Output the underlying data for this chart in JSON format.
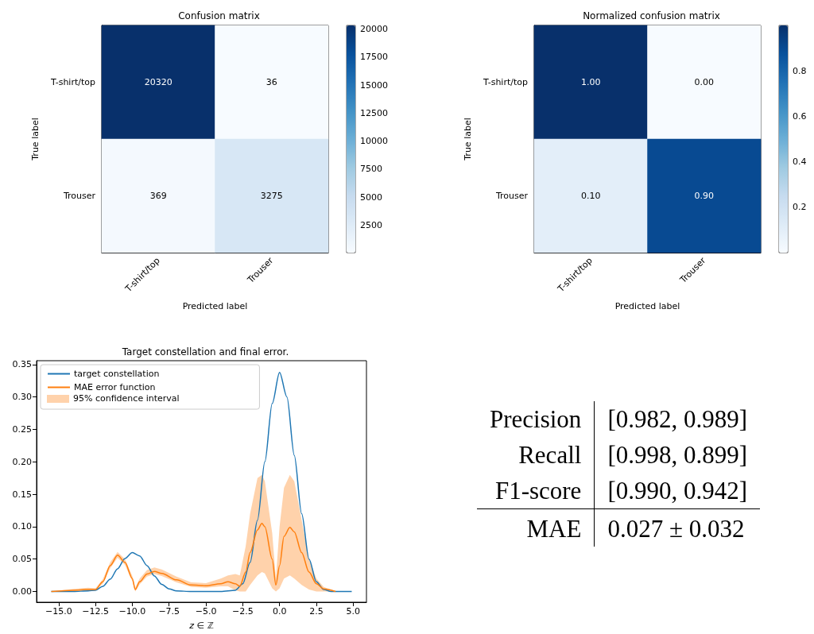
{
  "chart_data": [
    {
      "type": "heatmap",
      "title": "Confusion matrix",
      "xlabel": "Predicted label",
      "ylabel": "True label",
      "categories": [
        "T-shirt/top",
        "Trouser"
      ],
      "y_categories": [
        "T-shirt/top",
        "Trouser"
      ],
      "cells": [
        [
          20320,
          36
        ],
        [
          369,
          3275
        ]
      ],
      "data_labels": true,
      "clim": [
        36,
        20320
      ],
      "cticks": [
        2500,
        5000,
        7500,
        10000,
        12500,
        15000,
        17500,
        20000
      ]
    },
    {
      "type": "heatmap",
      "title": "Normalized confusion matrix",
      "xlabel": "Predicted label",
      "ylabel": "True label",
      "categories": [
        "T-shirt/top",
        "Trouser"
      ],
      "y_categories": [
        "T-shirt/top",
        "Trouser"
      ],
      "cells": [
        [
          1.0,
          0.0
        ],
        [
          0.1,
          0.9
        ]
      ],
      "cell_labels": [
        [
          "1.00",
          "0.00"
        ],
        [
          "0.10",
          "0.90"
        ]
      ],
      "clim": [
        0,
        1
      ],
      "cticks": [
        0.2,
        0.4,
        0.6,
        0.8
      ]
    },
    {
      "type": "line",
      "title": "Target constellation and final error.",
      "xlabel": "z ∈ ℤ",
      "legend": "top left",
      "marker": "none",
      "annotations": [
        "95% confidence interval"
      ],
      "xlim": [
        -16.5,
        5.9
      ],
      "ylim": [
        -0.0165,
        0.356
      ],
      "xticks": [
        {
          "value": -15,
          "label": "−15.0"
        },
        {
          "value": -12.5,
          "label": "−12.5"
        },
        {
          "value": -10,
          "label": "−10.0"
        },
        {
          "value": -7.5,
          "label": "−7.5"
        },
        {
          "value": -5,
          "label": "−5.0"
        },
        {
          "value": -2.5,
          "label": "−2.5"
        },
        {
          "value": 0,
          "label": "0.0"
        },
        {
          "value": 2.5,
          "label": "2.5"
        },
        {
          "value": 5,
          "label": "5.0"
        }
      ],
      "yticks": [
        {
          "value": 0,
          "label": "0.00"
        },
        {
          "value": 0.05,
          "label": "0.05"
        },
        {
          "value": 0.1,
          "label": "0.10"
        },
        {
          "value": 0.15,
          "label": "0.15"
        },
        {
          "value": 0.2,
          "label": "0.20"
        },
        {
          "value": 0.25,
          "label": "0.25"
        },
        {
          "value": 0.3,
          "label": "0.30"
        },
        {
          "value": 0.35,
          "label": "0.35"
        }
      ],
      "series": [
        {
          "name": "target constellation",
          "color": "#1f77b4",
          "x": [
            -15.5,
            -14,
            -13,
            -12.5,
            -12,
            -11.5,
            -11,
            -10.5,
            -10,
            -9.5,
            -9,
            -8.5,
            -8,
            -7.5,
            -7,
            -6,
            -4,
            -3,
            -2.5,
            -2,
            -1.5,
            -1,
            -0.5,
            0,
            0.5,
            1,
            1.5,
            2,
            2.5,
            3,
            3.5,
            4.9
          ],
          "values": [
            0,
            0,
            0.001,
            0.002,
            0.008,
            0.019,
            0.035,
            0.051,
            0.06,
            0.055,
            0.04,
            0.024,
            0.011,
            0.004,
            0.001,
            0,
            0,
            0.002,
            0.012,
            0.045,
            0.11,
            0.2,
            0.29,
            0.338,
            0.3,
            0.21,
            0.12,
            0.05,
            0.015,
            0.003,
            0,
            0
          ]
        },
        {
          "name": "MAE error function",
          "color": "#ff7f0e",
          "x": [
            -15.5,
            -14,
            -13,
            -12.5,
            -12,
            -11.5,
            -11,
            -10.5,
            -10,
            -9.8,
            -9.5,
            -9,
            -8.5,
            -8,
            -7,
            -6,
            -5,
            -4,
            -3.5,
            -3,
            -2.7,
            -2.3,
            -2,
            -1.5,
            -1.2,
            -1,
            -0.5,
            -0.25,
            0,
            0.3,
            0.7,
            1,
            1.5,
            2,
            2.5,
            3,
            3.8
          ],
          "values": [
            0,
            0.002,
            0.003,
            0.003,
            0.015,
            0.04,
            0.056,
            0.045,
            0.02,
            0.003,
            0.015,
            0.027,
            0.031,
            0.028,
            0.018,
            0.01,
            0.009,
            0.012,
            0.015,
            0.012,
            0.008,
            0.03,
            0.06,
            0.095,
            0.105,
            0.1,
            0.05,
            0.01,
            0.04,
            0.085,
            0.099,
            0.092,
            0.06,
            0.03,
            0.012,
            0.004,
            0
          ],
          "lower": [
            0,
            0.001,
            0.002,
            0.002,
            0.012,
            0.036,
            0.052,
            0.041,
            0.016,
            0,
            0.011,
            0.023,
            0.027,
            0.024,
            0.014,
            0.007,
            0.006,
            0.008,
            0.008,
            0.002,
            0,
            0,
            0.01,
            0.025,
            0.03,
            0.028,
            0.005,
            0,
            0.005,
            0.02,
            0.025,
            0.02,
            0.01,
            0.003,
            0,
            0,
            0
          ],
          "upper": [
            0,
            0.004,
            0.006,
            0.005,
            0.019,
            0.045,
            0.061,
            0.05,
            0.024,
            0.006,
            0.02,
            0.033,
            0.037,
            0.034,
            0.023,
            0.014,
            0.013,
            0.02,
            0.025,
            0.027,
            0.025,
            0.07,
            0.12,
            0.175,
            0.18,
            0.17,
            0.09,
            0.02,
            0.1,
            0.16,
            0.18,
            0.17,
            0.11,
            0.05,
            0.02,
            0.007,
            0
          ]
        }
      ]
    },
    {
      "type": "other",
      "annotations": [
        "Precision",
        "[0.982, 0.989]",
        "Recall",
        "[0.998, 0.899]",
        "F1-score",
        "[0.990, 0.942]",
        "MAE",
        "0.027 ± 0.032"
      ]
    }
  ]
}
